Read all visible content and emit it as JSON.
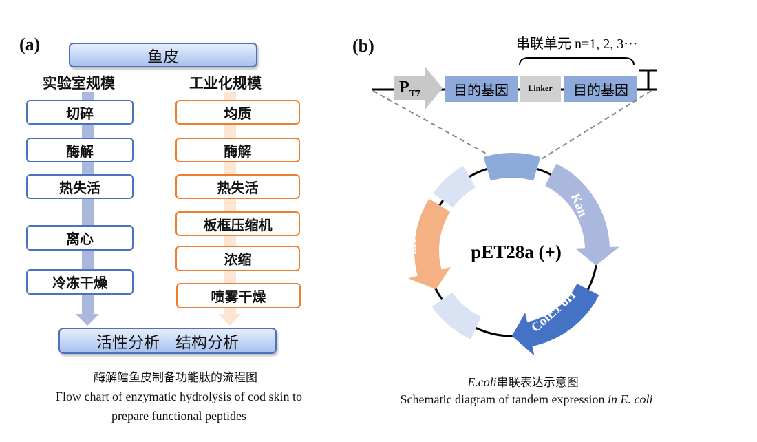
{
  "panel_a": {
    "label": "(a)",
    "top": "鱼皮",
    "lab_header": "实验室规模",
    "ind_header": "工业化规模",
    "lab_steps": [
      "切碎",
      "酶解",
      "热失活",
      "离心",
      "冷冻干燥"
    ],
    "ind_steps": [
      "均质",
      "酶解",
      "热失活",
      "板框压缩机",
      "浓缩",
      "喷雾干燥"
    ],
    "bottom": "活性分析　结构分析",
    "caption_cn": "酶解鳕鱼皮制备功能肽的流程图",
    "caption_en_1": "Flow chart of enzymatic hydrolysis of cod skin to",
    "caption_en_2": "prepare functional peptides"
  },
  "panel_b": {
    "label": "(b)",
    "tandem_label": "串联单元 n=1, 2, 3···",
    "promoter": "P",
    "promoter_sub": "T7",
    "gene1": "目的基因",
    "linker": "Linker",
    "gene2": "目的基因",
    "plasmid": "pET28a (+)",
    "kan": "Kan",
    "ori": "ColE1 ori",
    "lac": "lac I",
    "caption_1_italic": "E.coli",
    "caption_1_rest": "串联表达示意图",
    "caption_2_main": "Schematic diagram of tandem expression ",
    "caption_2_italic": "in E. coli"
  },
  "colors": {
    "blue_box": "#4a72c0",
    "orange_box": "#ed7d31",
    "gene": "#8eaadb",
    "linker": "#d0d0d0",
    "kan": "#a9b8dc",
    "ori": "#4472c4",
    "lac": "#f4b183",
    "light": "#dae3f3"
  }
}
